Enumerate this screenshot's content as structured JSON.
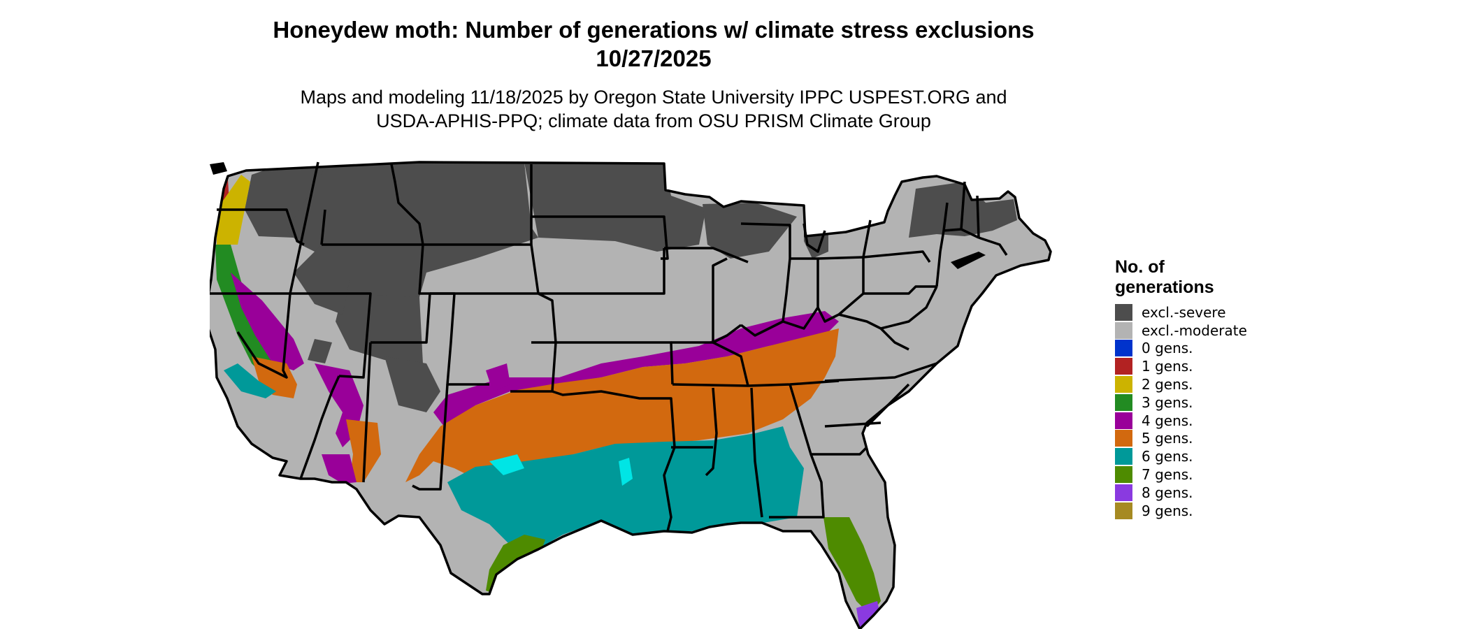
{
  "title": {
    "line1": "Honeydew moth: Number of generations w/ climate stress exclusions",
    "line2": "10/27/2025"
  },
  "subtitle": {
    "line1": "Maps and modeling 11/18/2025 by Oregon State University IPPC USPEST.ORG and",
    "line2": "USDA-APHIS-PPQ; climate data from OSU PRISM Climate Group"
  },
  "legend": {
    "title_line1": "No. of",
    "title_line2": "generations",
    "items": [
      {
        "label": "excl.-severe",
        "color": "#4d4d4d"
      },
      {
        "label": "excl.-moderate",
        "color": "#b3b3b3"
      },
      {
        "label": "0 gens.",
        "color": "#0033cc"
      },
      {
        "label": "1 gens.",
        "color": "#b22222"
      },
      {
        "label": "2 gens.",
        "color": "#ccb300"
      },
      {
        "label": "3 gens.",
        "color": "#228b22"
      },
      {
        "label": "4 gens.",
        "color": "#990099"
      },
      {
        "label": "5 gens.",
        "color": "#d2690f"
      },
      {
        "label": "6 gens.",
        "color": "#009999"
      },
      {
        "label": "7 gens.",
        "color": "#4e8b00"
      },
      {
        "label": "8 gens.",
        "color": "#8a3ae0"
      },
      {
        "label": "9 gens.",
        "color": "#a68a22"
      }
    ]
  }
}
